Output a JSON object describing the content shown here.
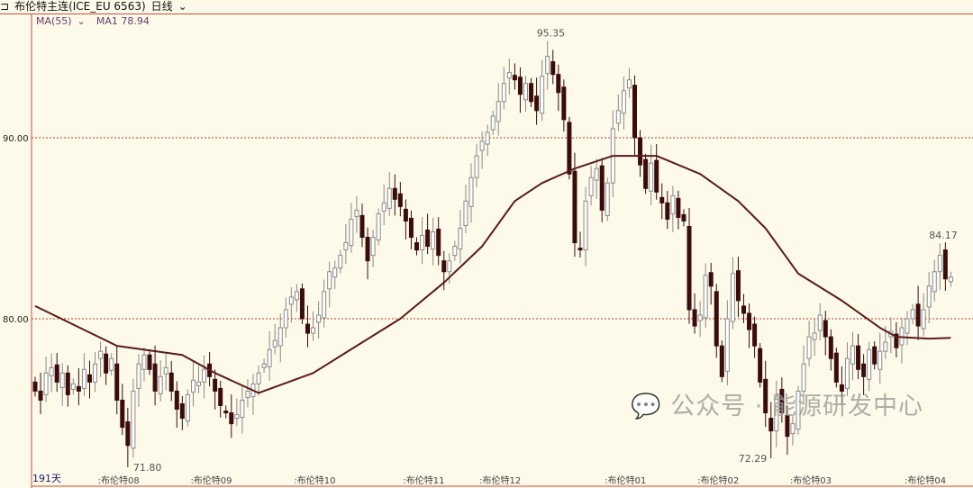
{
  "header": {
    "menu_icon": "menu-icon",
    "title": "布伦特主连(ICE_EU 6563)",
    "period": "日线",
    "period_dropdown_icon": "chevron-down-icon"
  },
  "indicator": {
    "name": "MA(55)",
    "dropdown_icon": "chevron-down-icon",
    "value_label": "MA1 78.94"
  },
  "watermark": {
    "icon": "wechat-icon",
    "text": "公众号 · 能源研发中心"
  },
  "colors": {
    "background": "#fdfae9",
    "up": "#ffffff",
    "up_outline": "#8a8a8a",
    "down": "#3a0c0c",
    "ma": "#5a1a1a",
    "grid": "#c0392b",
    "axis": "#d04a3a"
  },
  "chart_data": {
    "type": "candlestick",
    "span_label": "191天",
    "ylim": [
      72.0,
      96.5
    ],
    "y_ticks": [
      {
        "value": 80,
        "label": "80.00"
      },
      {
        "value": 90,
        "label": "90.00"
      }
    ],
    "grid": "dashed horizontal at y ticks",
    "closes": [
      76,
      75.5,
      77,
      77.3,
      76.5,
      77,
      75.8,
      76.4,
      76,
      77.2,
      76.5,
      77.5,
      78.2,
      77,
      77.8,
      75.5,
      74,
      73,
      76,
      77.5,
      78,
      77.2,
      76,
      76.8,
      77.3,
      76,
      75,
      74.5,
      75.8,
      76.6,
      76.5,
      77.2,
      76.8,
      76,
      75.2,
      74.8,
      74.2,
      74.7,
      75.5,
      76,
      76.4,
      77,
      77.5,
      78.3,
      78.8,
      79.5,
      80.5,
      81.2,
      81.5,
      80,
      79.2,
      79.5,
      80.2,
      81.5,
      82.6,
      82.8,
      83.5,
      84.2,
      85.5,
      86,
      84.5,
      83.2,
      84.5,
      85.8,
      86.4,
      87.2,
      86.6,
      86.2,
      85.4,
      84.5,
      83.8,
      84.6,
      84,
      84.8,
      83.5,
      82.6,
      83.2,
      84,
      85,
      86.5,
      87.8,
      89,
      89.8,
      90.3,
      91.2,
      92,
      93,
      93.6,
      93.2,
      92.4,
      93,
      92,
      91.5,
      93.4,
      94.5,
      93.5,
      92.5,
      91,
      88,
      84.2,
      83.8,
      86.5,
      87.8,
      88.3,
      86,
      87.5,
      90.5,
      91.5,
      92.6,
      93.2,
      90,
      88.5,
      87.2,
      88.6,
      87,
      86.4,
      85.5,
      86.8,
      85.6,
      85.4,
      80.5,
      79.6,
      80.2,
      82.4,
      81.8,
      78.5,
      76.8,
      80,
      82.5,
      81,
      80.3,
      79.4,
      78.5,
      76.5,
      74.8,
      73.8,
      75.8,
      74.8,
      73.5,
      74.2,
      76,
      77.5,
      79,
      79.2,
      80.2,
      79,
      77.8,
      76.5,
      76,
      77.8,
      78.5,
      77.2,
      76.8,
      78.3,
      77.5,
      78.2,
      78.7,
      79.3,
      78.4,
      79.5,
      80,
      80.5,
      79.6,
      80.5,
      81.8,
      82.6,
      83.5,
      82.2,
      82.3
    ],
    "ma55": [
      [
        0,
        80.7
      ],
      [
        15,
        78.5
      ],
      [
        27,
        78
      ],
      [
        33,
        77
      ],
      [
        41,
        75.9
      ],
      [
        51,
        77
      ],
      [
        59,
        78.5
      ],
      [
        67,
        80
      ],
      [
        75,
        82
      ],
      [
        82,
        84
      ],
      [
        88,
        86.5
      ],
      [
        93,
        87.5
      ],
      [
        99,
        88.3
      ],
      [
        106,
        89
      ],
      [
        114,
        89
      ],
      [
        122,
        88
      ],
      [
        129,
        86.5
      ],
      [
        134,
        85
      ],
      [
        140,
        82.5
      ],
      [
        148,
        81
      ],
      [
        155,
        79.5
      ],
      [
        158,
        79
      ],
      [
        164,
        78.9
      ],
      [
        168,
        78.94
      ]
    ],
    "annotations": [
      {
        "index": 94,
        "value": 95.35,
        "label": "95.35",
        "kind": "high"
      },
      {
        "index": 17,
        "value": 71.8,
        "label": "71.80",
        "kind": "low"
      },
      {
        "index": 135,
        "value": 72.29,
        "label": "72.29",
        "kind": "low"
      },
      {
        "index": 166,
        "value": 84.17,
        "label": "84.17",
        "kind": "high"
      }
    ],
    "x_labels": [
      {
        "index": 12,
        "label": "布伦特08"
      },
      {
        "index": 29,
        "label": "布伦特09"
      },
      {
        "index": 48,
        "label": "布伦特10"
      },
      {
        "index": 68,
        "label": "布伦特11"
      },
      {
        "index": 82,
        "label": "布伦特12"
      },
      {
        "index": 105,
        "label": "布伦特01"
      },
      {
        "index": 122,
        "label": "布伦特02"
      },
      {
        "index": 139,
        "label": "布伦特03"
      },
      {
        "index": 160,
        "label": "布伦特04"
      }
    ]
  }
}
